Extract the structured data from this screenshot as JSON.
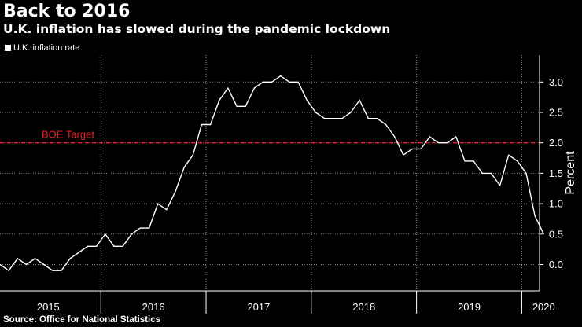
{
  "header": {
    "title": "Back to 2016",
    "subtitle": "U.K. inflation has slowed during the pandemic lockdown"
  },
  "legend": {
    "label": "U.K. inflation rate"
  },
  "footer": {
    "source": "Source: Office for National Statistics"
  },
  "colors": {
    "background": "#000000",
    "line": "#ffffff",
    "target": "#e8202a",
    "grid": "#8a8a8a",
    "axis": "#ffffff"
  },
  "chart_data": {
    "type": "line",
    "title": "Back to 2016",
    "subtitle": "U.K. inflation has slowed during the pandemic lockdown",
    "ylabel": "Percent",
    "xlabel": "",
    "ylim": [
      -0.4,
      3.4
    ],
    "yticks": [
      0.0,
      0.5,
      1.0,
      1.5,
      2.0,
      2.5,
      3.0
    ],
    "ytick_labels": [
      "0.0",
      "0.5",
      "1.0",
      "1.5",
      "2.0",
      "2.5",
      "3.0"
    ],
    "x_start": "2015-01",
    "year_labels": [
      {
        "label": "2015",
        "center": 5.5
      },
      {
        "label": "2016",
        "center": 17.5
      },
      {
        "label": "2017",
        "center": 29.5
      },
      {
        "label": "2018",
        "center": 41.5
      },
      {
        "label": "2019",
        "center": 53.5
      },
      {
        "label": "2020",
        "center": 62
      }
    ],
    "year_boundaries": [
      11.5,
      23.5,
      35.5,
      47.5,
      59.5
    ],
    "target": {
      "label": "BOE Target",
      "value": 2.0
    },
    "series": [
      {
        "name": "U.K. inflation rate",
        "values": [
          0.0,
          -0.1,
          0.1,
          0.0,
          0.1,
          0.0,
          -0.1,
          -0.1,
          0.1,
          0.2,
          0.3,
          0.3,
          0.5,
          0.3,
          0.3,
          0.5,
          0.6,
          0.6,
          1.0,
          0.9,
          1.2,
          1.6,
          1.8,
          2.3,
          2.3,
          2.7,
          2.9,
          2.6,
          2.6,
          2.9,
          3.0,
          3.0,
          3.1,
          3.0,
          3.0,
          2.7,
          2.5,
          2.4,
          2.4,
          2.4,
          2.5,
          2.7,
          2.4,
          2.4,
          2.3,
          2.1,
          1.8,
          1.9,
          1.9,
          2.1,
          2.0,
          2.0,
          2.1,
          1.7,
          1.7,
          1.5,
          1.5,
          1.3,
          1.8,
          1.7,
          1.5,
          0.8,
          0.5
        ]
      }
    ]
  }
}
